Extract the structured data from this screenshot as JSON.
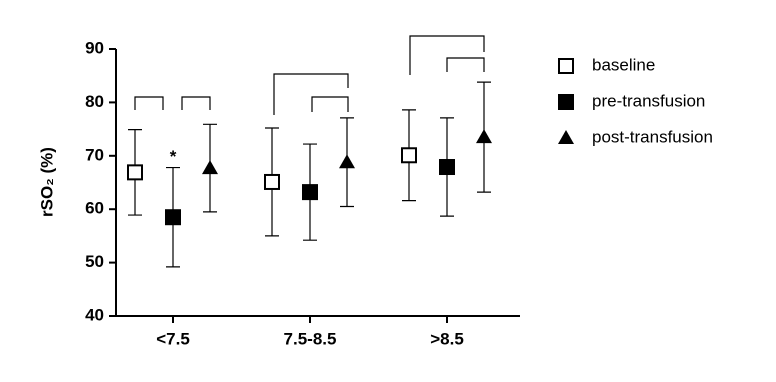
{
  "chart_data": {
    "type": "scatter",
    "y_label": "rSO₂ (%)",
    "categories": [
      "<7.5",
      "7.5-8.5",
      ">8.5"
    ],
    "series": [
      {
        "name": "baseline",
        "color": "#000000",
        "marker": "square-open",
        "values": [
          66.9,
          65.1,
          70.1
        ],
        "errors": [
          8.0,
          10.1,
          8.5
        ]
      },
      {
        "name": "pre-transfusion",
        "color": "#000000",
        "marker": "square",
        "values": [
          58.5,
          63.2,
          67.9
        ],
        "errors": [
          9.3,
          9.0,
          9.2
        ]
      },
      {
        "name": "post-transfusion",
        "color": "#000000",
        "marker": "triangle",
        "values": [
          67.7,
          68.8,
          73.5
        ],
        "errors": [
          8.2,
          8.3,
          10.3
        ]
      }
    ],
    "annotations": [
      {
        "text": "*"
      }
    ],
    "ylim": [
      40,
      90
    ],
    "yticks": [
      40,
      50,
      60,
      70,
      80,
      90
    ]
  }
}
